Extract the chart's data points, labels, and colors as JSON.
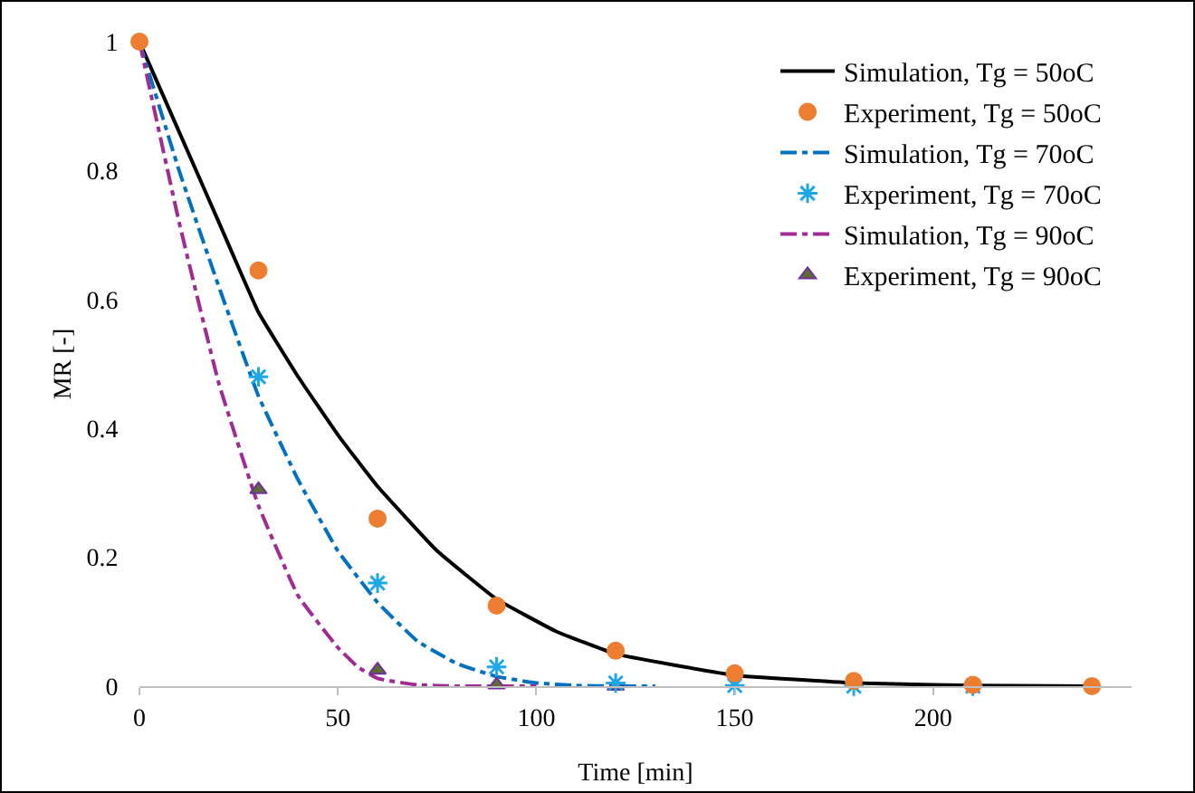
{
  "chart_data": {
    "type": "line",
    "xlabel": "Time [min]",
    "ylabel": "MR [-]",
    "xlim": [
      0,
      250
    ],
    "xticks": [
      0,
      50,
      100,
      150,
      200
    ],
    "ylim": [
      0,
      1
    ],
    "yticks": [
      0,
      0.2,
      0.4,
      0.6,
      0.8,
      1
    ],
    "grid": false,
    "legend": "top right",
    "series": [
      {
        "name": "Simulation, Tg = 50oC",
        "color": "#000000",
        "line_style": "solid",
        "marker": "none",
        "x": [
          0,
          10,
          20,
          30,
          40,
          50,
          60,
          75,
          90,
          105,
          120,
          150,
          180,
          210,
          240
        ],
        "values": [
          1,
          0.86,
          0.72,
          0.58,
          0.48,
          0.39,
          0.31,
          0.21,
          0.135,
          0.085,
          0.05,
          0.017,
          0.005,
          0.001,
          0
        ]
      },
      {
        "name": "Experiment, Tg = 50oC",
        "type": "scatter",
        "color": "#ed7d31",
        "marker": "circle",
        "x": [
          0,
          30,
          60,
          90,
          120,
          150,
          180,
          210,
          240
        ],
        "values": [
          1,
          0.645,
          0.26,
          0.125,
          0.055,
          0.02,
          0.008,
          0.002,
          0
        ]
      },
      {
        "name": "Simulation, Tg = 70oC",
        "color": "#0070c0",
        "line_style": "dashdot",
        "marker": "none",
        "x": [
          0,
          10,
          20,
          30,
          40,
          50,
          60,
          70,
          80,
          90,
          100,
          110,
          120,
          130
        ],
        "values": [
          1,
          0.8,
          0.62,
          0.45,
          0.32,
          0.21,
          0.13,
          0.07,
          0.035,
          0.015,
          0.005,
          0.001,
          0,
          0
        ]
      },
      {
        "name": "Experiment, Tg = 70oC",
        "type": "scatter",
        "color": "#1fa8e8",
        "marker": "cross",
        "x": [
          30,
          60,
          90,
          120,
          150,
          180,
          210
        ],
        "values": [
          0.48,
          0.16,
          0.03,
          0.005,
          0.001,
          0,
          0
        ]
      },
      {
        "name": "Simulation, Tg = 90oC",
        "color": "#a02b93",
        "line_style": "dashdot",
        "marker": "none",
        "x": [
          0,
          10,
          20,
          30,
          40,
          50,
          55,
          60,
          70,
          80,
          100
        ],
        "values": [
          1,
          0.72,
          0.47,
          0.28,
          0.14,
          0.06,
          0.03,
          0.012,
          0.002,
          0,
          0
        ]
      },
      {
        "name": "Experiment, Tg = 90oC",
        "type": "scatter",
        "color": "#5b6e2e",
        "marker": "triangle",
        "x": [
          30,
          60,
          90,
          120
        ],
        "values": [
          0.305,
          0.025,
          0.002,
          0
        ]
      }
    ]
  }
}
